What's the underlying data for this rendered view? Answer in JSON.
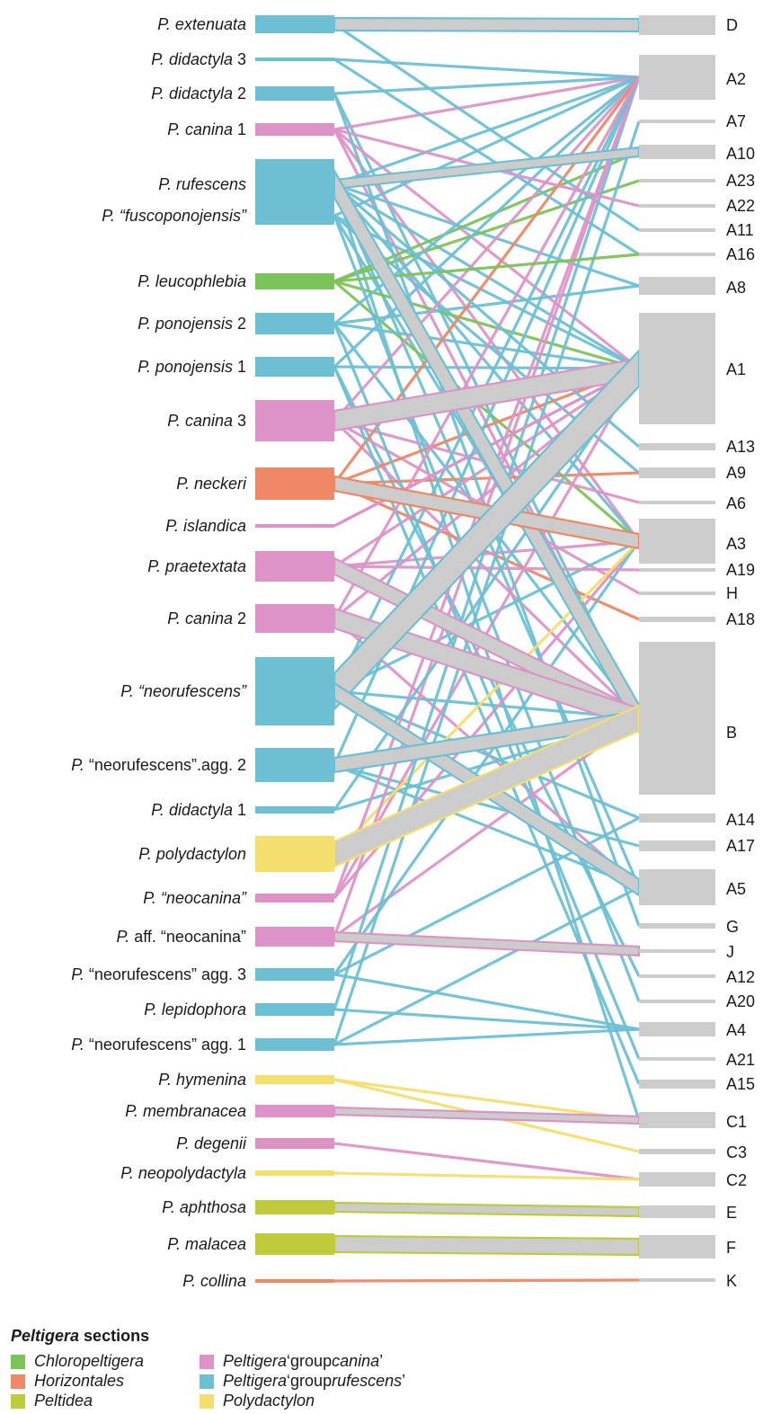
{
  "colors": {
    "chloropeltigera": "#7cc35a",
    "horizontales": "#ee8866",
    "peltidea": "#bfcb3a",
    "canina": "#de93c8",
    "rufescens": "#6dc0d4",
    "polydactylon": "#f3de6e",
    "shared": "#cccccc"
  },
  "taxa": [
    {
      "italic": "P. extenuata",
      "plain": "",
      "section": "rufescens"
    },
    {
      "italic": "P. didactyla",
      "plain": " 3",
      "section": "rufescens"
    },
    {
      "italic": "P. didactyla",
      "plain": " 2",
      "section": "rufescens"
    },
    {
      "italic": "P. canina",
      "plain": " 1",
      "section": "canina"
    },
    {
      "italic": "P. rufescens",
      "plain": "",
      "section": "rufescens"
    },
    {
      "italic": "P. “fuscoponojensis”",
      "plain": "",
      "section": "rufescens"
    },
    {
      "italic": "P. leucophlebia",
      "plain": "",
      "section": "chloropeltigera"
    },
    {
      "italic": "P. ponojensis",
      "plain": " 2",
      "section": "rufescens"
    },
    {
      "italic": "P. ponojensis",
      "plain": " 1",
      "section": "rufescens"
    },
    {
      "italic": "P. canina",
      "plain": " 3",
      "section": "canina"
    },
    {
      "italic": "P. neckeri",
      "plain": "",
      "section": "horizontales"
    },
    {
      "italic": "P. islandica",
      "plain": "",
      "section": "canina"
    },
    {
      "italic": "P. praetextata",
      "plain": "",
      "section": "canina"
    },
    {
      "italic": "P. canina",
      "plain": " 2",
      "section": "canina"
    },
    {
      "italic": "P. “neorufescens”",
      "plain": "",
      "section": "rufescens"
    },
    {
      "italic": "P.",
      "plain": " “neorufescens”.agg. 2",
      "section": "rufescens"
    },
    {
      "italic": "P. didactyla",
      "plain": " 1",
      "section": "rufescens"
    },
    {
      "italic": "P. polydactylon",
      "plain": "",
      "section": "polydactylon"
    },
    {
      "italic": "P. “neocanina”",
      "plain": "",
      "section": "canina"
    },
    {
      "italic": "P.",
      "plain": " aff. “neocanina”",
      "section": "canina"
    },
    {
      "italic": "P.",
      "plain": " “neorufescens” agg. 3",
      "section": "rufescens"
    },
    {
      "italic": "P. lepidophora",
      "plain": "",
      "section": "rufescens"
    },
    {
      "italic": "P.",
      "plain": " “neorufescens” agg. 1",
      "section": "rufescens"
    },
    {
      "italic": "P. hymenina",
      "plain": "",
      "section": "polydactylon"
    },
    {
      "italic": "P. membranacea",
      "plain": "",
      "section": "canina"
    },
    {
      "italic": "P. degenii",
      "plain": "",
      "section": "canina"
    },
    {
      "italic": "P. neopolydactyla",
      "plain": "",
      "section": "polydactylon"
    },
    {
      "italic": "P. aphthosa",
      "plain": "",
      "section": "peltidea"
    },
    {
      "italic": "P. malacea",
      "plain": "",
      "section": "peltidea"
    },
    {
      "italic": "P. collina",
      "plain": "",
      "section": "horizontales"
    }
  ],
  "symbionts": [
    "D",
    "A2",
    "A7",
    "A10",
    "A23",
    "A22",
    "A11",
    "A16",
    "A8",
    "A1",
    "A13",
    "A9",
    "A6",
    "A3",
    "A19",
    "H",
    "A18",
    "B",
    "A14",
    "A17",
    "A5",
    "G",
    "J",
    "A12",
    "A20",
    "A4",
    "A21",
    "A15",
    "C1",
    "C3",
    "C2",
    "E",
    "F",
    "K"
  ],
  "legend": {
    "title_bold_italic": "Peltigera",
    "title_rest": " sections",
    "items": [
      {
        "key": "chloropeltigera",
        "italic": "Chloropeltigera",
        "plain": ""
      },
      {
        "key": "horizontales",
        "italic": "Horizontales",
        "plain": ""
      },
      {
        "key": "peltidea",
        "italic": "Peltidea",
        "plain": ""
      },
      {
        "key": "canina",
        "italic": "Peltigera",
        "plain": " ‘group ",
        "italic2": "canina",
        "plain2": "’"
      },
      {
        "key": "rufescens",
        "italic": "Peltigera",
        "plain": " ‘group ",
        "italic2": "rufescens",
        "plain2": "’"
      },
      {
        "key": "polydactylon",
        "italic": "Polydactylon",
        "plain": ""
      }
    ]
  }
}
